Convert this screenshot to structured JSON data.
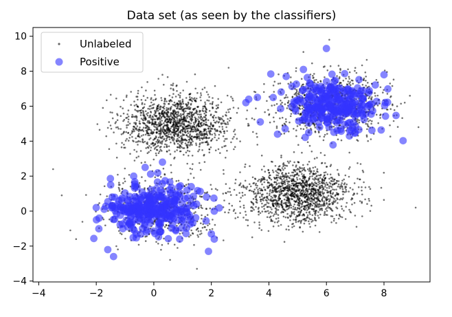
{
  "chart_data": {
    "type": "scatter",
    "title": "Data set (as seen by the classifiers)",
    "xlabel": "",
    "ylabel": "",
    "xlim": [
      -4.2,
      9.6
    ],
    "ylim": [
      -4.05,
      10.5
    ],
    "xticks": [
      -4,
      -2,
      0,
      2,
      4,
      6,
      8
    ],
    "yticks": [
      -4,
      -2,
      0,
      2,
      4,
      6,
      8,
      10
    ],
    "grid": false,
    "legend": {
      "placement": "top-left"
    },
    "series": [
      {
        "name": "Unlabeled",
        "marker": "dot",
        "color": "#000000",
        "opacity": 0.55,
        "clusters": [
          {
            "center": [
              0.8,
              5.0
            ],
            "spread": [
              0.95,
              0.85
            ],
            "count": 1400
          },
          {
            "center": [
              5.0,
              1.0
            ],
            "spread": [
              0.95,
              0.85
            ],
            "count": 1400
          },
          {
            "center": [
              6.2,
              6.1
            ],
            "spread": [
              0.95,
              0.85
            ],
            "count": 1000
          },
          {
            "center": [
              0.2,
              0.1
            ],
            "spread": [
              0.95,
              0.85
            ],
            "count": 650
          }
        ],
        "points": [
          [
            -3.5,
            2.4
          ],
          [
            -3.2,
            0.9
          ],
          [
            9.1,
            0.2
          ],
          [
            9.2,
            4.8
          ],
          [
            8.9,
            6.6
          ],
          [
            6.1,
            9.8
          ],
          [
            5.2,
            9.1
          ],
          [
            -2.9,
            -1.1
          ],
          [
            -2.7,
            -1.6
          ],
          [
            1.5,
            -3.3
          ],
          [
            2.6,
            8.2
          ],
          [
            -1.4,
            8.3
          ],
          [
            3.6,
            3.8
          ],
          [
            4.2,
            7.4
          ],
          [
            0.3,
            7.8
          ]
        ]
      },
      {
        "name": "Positive",
        "marker": "circle",
        "color": "#3333ff",
        "opacity": 0.6,
        "clusters": [
          {
            "center": [
              6.3,
              6.0
            ],
            "spread": [
              0.75,
              0.75
            ],
            "count": 260
          },
          {
            "center": [
              0.0,
              0.1
            ],
            "spread": [
              0.8,
              0.7
            ],
            "count": 290
          }
        ],
        "points": [
          [
            6.0,
            9.3
          ],
          [
            8.0,
            7.8
          ],
          [
            3.3,
            6.4
          ],
          [
            3.6,
            6.5
          ],
          [
            3.2,
            6.2
          ],
          [
            3.7,
            5.1
          ],
          [
            4.3,
            4.4
          ],
          [
            7.0,
            4.5
          ],
          [
            0.3,
            2.8
          ],
          [
            -0.7,
            2.0
          ],
          [
            -0.3,
            2.5
          ],
          [
            -1.5,
            1.5
          ],
          [
            -1.6,
            -2.2
          ],
          [
            -1.4,
            -2.6
          ],
          [
            1.9,
            -2.3
          ],
          [
            2.0,
            -1.3
          ],
          [
            2.1,
            -1.6
          ],
          [
            -1.9,
            -0.4
          ],
          [
            -2.0,
            0.2
          ],
          [
            1.3,
            1.4
          ],
          [
            0.9,
            -1.6
          ],
          [
            2.1,
            0.0
          ],
          [
            6.8,
            4.3
          ],
          [
            5.2,
            8.1
          ],
          [
            4.6,
            7.7
          ]
        ]
      }
    ]
  }
}
